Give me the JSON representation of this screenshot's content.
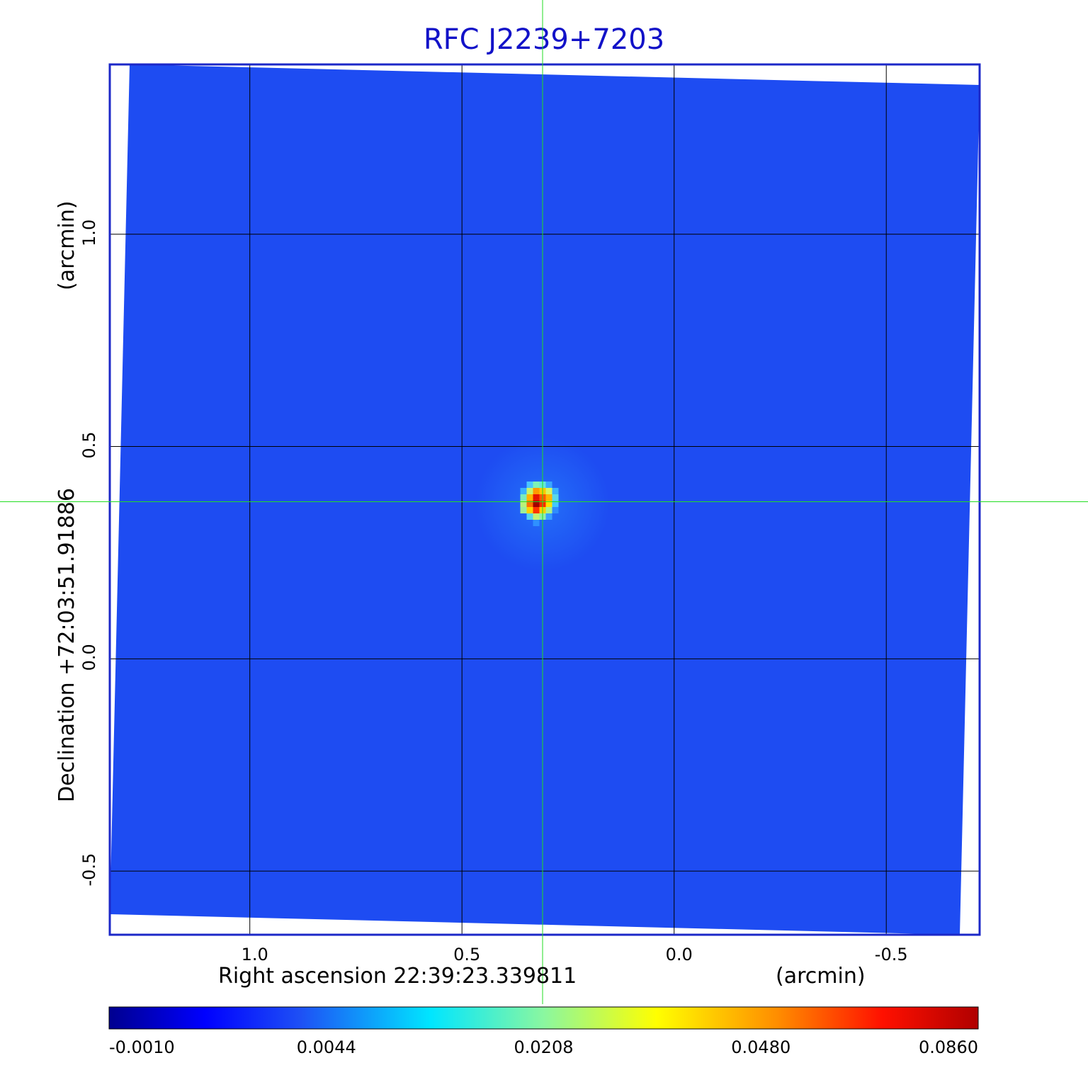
{
  "chart_data": {
    "type": "heatmap",
    "title": "RFC J2239+7203",
    "xlabel": "Right ascension  22:39:23.339811",
    "xunit": "(arcmin)",
    "ylabel": "Declination  +72:03:51.91886",
    "yunit": "(arcmin)",
    "x_range": [
      1.33,
      -0.72
    ],
    "y_range": [
      -0.65,
      1.4
    ],
    "x_ticks": [
      {
        "value": 1.0,
        "label": "1.0"
      },
      {
        "value": 0.5,
        "label": "0.5"
      },
      {
        "value": 0.0,
        "label": "0.0"
      },
      {
        "value": -0.5,
        "label": "-0.5"
      }
    ],
    "y_ticks": [
      {
        "value": 1.0,
        "label": "1.0"
      },
      {
        "value": 0.5,
        "label": "0.5"
      },
      {
        "value": 0.0,
        "label": "0.0"
      },
      {
        "value": -0.5,
        "label": "-0.5"
      }
    ],
    "grid": true,
    "crosshair": {
      "x": 0.31,
      "y": 0.37
    },
    "source": {
      "x": 0.31,
      "y": 0.365,
      "peak": 0.086
    },
    "background_level": 0.0025,
    "colormap": "jet",
    "colorbar": {
      "min": -0.001,
      "max": 0.086,
      "scale": "nonlinear",
      "tick_labels": [
        "-0.0010",
        "0.0044",
        "0.0208",
        "0.0480",
        "0.0860"
      ]
    }
  },
  "colors": {
    "title": "#1212c8",
    "frame": "#1c28c8",
    "grid": "#000000",
    "crosshair": "#22dd22",
    "background_fill": "#1e4cf2"
  }
}
